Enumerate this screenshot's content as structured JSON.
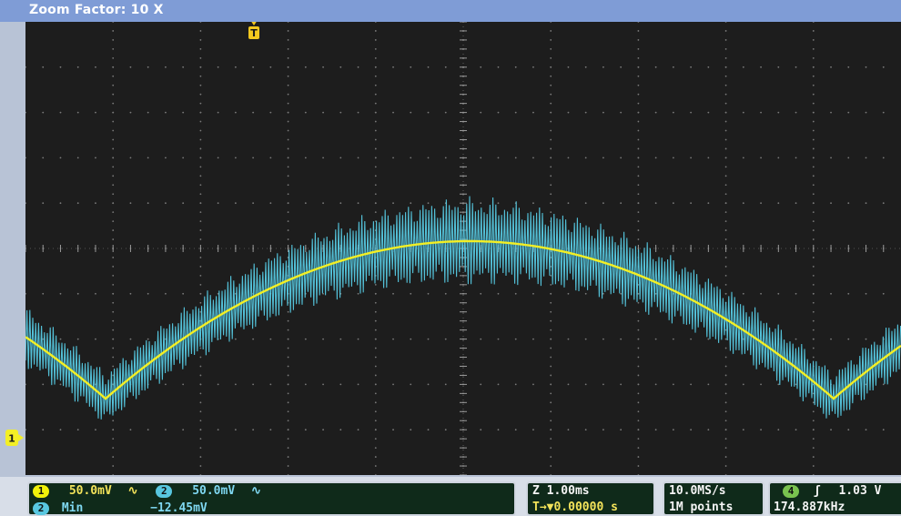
{
  "header": {
    "title": "Zoom Factor: 10 X"
  },
  "colors": {
    "screen_bg": "#1d1d1d",
    "grid": "#7a7a7a",
    "ch1": "#f3ef25",
    "ch2": "#56c9e1",
    "footer_box": "#0f2a1a"
  },
  "markers": {
    "trigger_label": "T",
    "ch1_label": "1"
  },
  "channels": {
    "ch1_label": "1",
    "ch1_scale": "50.0mV",
    "ch2_label": "2",
    "ch2_scale": "50.0mV",
    "coupling_symbol": "∿"
  },
  "measurement": {
    "channel_label": "2",
    "name": "Min",
    "value": "−12.45mV"
  },
  "zoom": {
    "scale": "Z 1.00ms",
    "trigger_pos": "T→▼0.00000 s"
  },
  "acquisition": {
    "rate": "10.0MS/s",
    "record": "1M points"
  },
  "trigger": {
    "channel_label": "4",
    "slope": "ʃ",
    "level": "1.03 V",
    "frequency": "174.887kHz"
  }
}
